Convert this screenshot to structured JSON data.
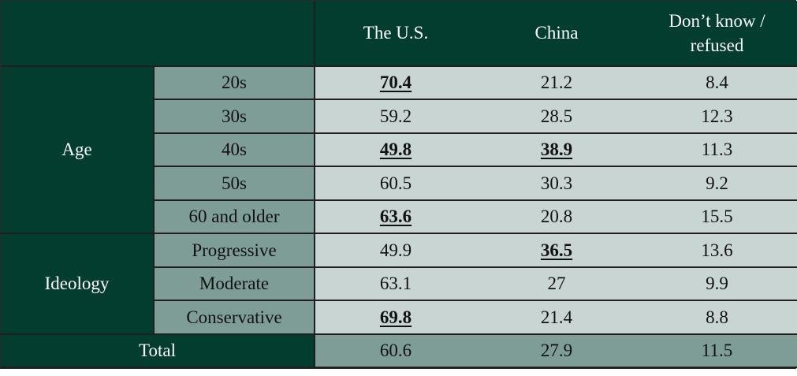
{
  "chart_data": {
    "type": "table",
    "columns": [
      "The U.S.",
      "China",
      "Don’t know /\nrefused"
    ],
    "groups": [
      {
        "name": "Age",
        "rows": [
          {
            "label": "20s",
            "values": [
              "70.4",
              "21.2",
              "8.4"
            ],
            "bold": [
              true,
              false,
              false
            ]
          },
          {
            "label": "30s",
            "values": [
              "59.2",
              "28.5",
              "12.3"
            ],
            "bold": [
              false,
              false,
              false
            ]
          },
          {
            "label": "40s",
            "values": [
              "49.8",
              "38.9",
              "11.3"
            ],
            "bold": [
              true,
              true,
              false
            ]
          },
          {
            "label": "50s",
            "values": [
              "60.5",
              "30.3",
              "9.2"
            ],
            "bold": [
              false,
              false,
              false
            ]
          },
          {
            "label": "60 and older",
            "values": [
              "63.6",
              "20.8",
              "15.5"
            ],
            "bold": [
              true,
              false,
              false
            ]
          }
        ]
      },
      {
        "name": "Ideology",
        "rows": [
          {
            "label": "Progressive",
            "values": [
              "49.9",
              "36.5",
              "13.6"
            ],
            "bold": [
              false,
              true,
              false
            ]
          },
          {
            "label": "Moderate",
            "values": [
              "63.1",
              "27",
              "9.9"
            ],
            "bold": [
              false,
              false,
              false
            ]
          },
          {
            "label": "Conservative",
            "values": [
              "69.8",
              "21.4",
              "8.8"
            ],
            "bold": [
              true,
              false,
              false
            ]
          }
        ]
      }
    ],
    "total": {
      "label": "Total",
      "values": [
        "60.6",
        "27.9",
        "11.5"
      ]
    }
  },
  "colors": {
    "dark": "#023d30",
    "mid": "#7e9d97",
    "light": "#c9d5d2"
  }
}
